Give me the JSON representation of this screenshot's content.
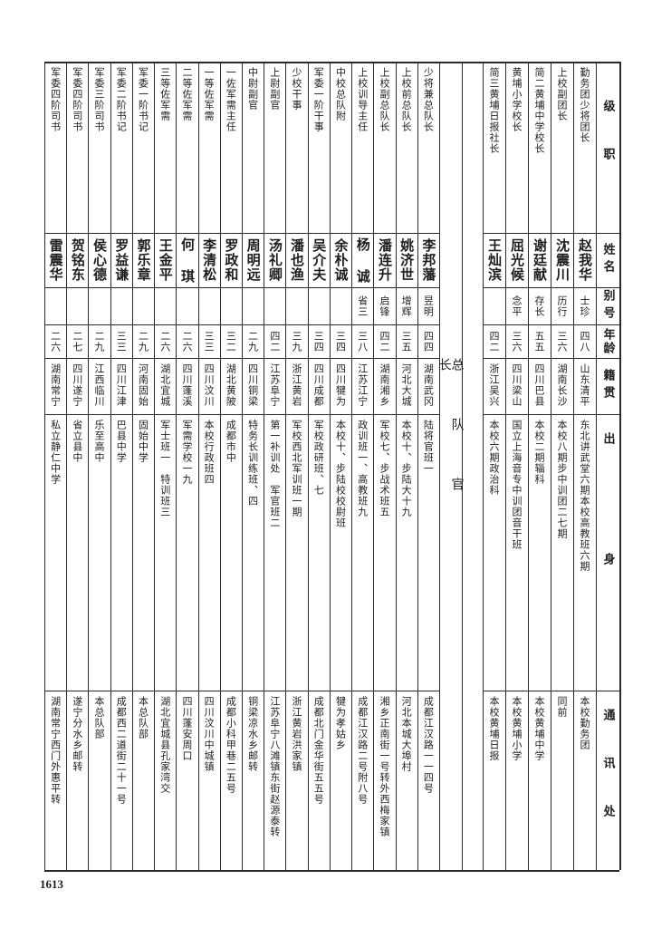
{
  "headers": [
    "级职",
    "姓名",
    "别号",
    "年龄",
    "籍贯",
    "出身",
    "通讯处"
  ],
  "section_label": "总队官长",
  "right_block": [
    {
      "title": "勤务团少将团长",
      "name": "赵我华",
      "alias": "士珍",
      "age": "四八",
      "native": "山东清平",
      "origin": "东北讲武堂六期本校高教班六期",
      "address": "本校勤务团"
    },
    {
      "title": "上校副团长",
      "name": "沈震川",
      "alias": "历行",
      "age": "三六",
      "native": "湖南长沙",
      "origin": "本校八期步中训团二七期",
      "address": "同前"
    },
    {
      "title": "简二黄埔中学校长",
      "name": "谢廷献",
      "alias": "存长",
      "age": "五五",
      "native": "四川巴县",
      "origin": "本校二期辎科",
      "address": "本校黄埔中学"
    },
    {
      "title": "黄埔小学校长",
      "name": "屈光候",
      "alias": "念平",
      "age": "三六",
      "native": "四川梁山",
      "origin": "国立上海音专中训团音干班",
      "address": "本校黄埔小学"
    },
    {
      "title": "简三黄埔日报社长",
      "name": "王灿滨",
      "alias": "",
      "age": "四二",
      "native": "浙江吴兴",
      "origin": "本校六期政治科",
      "address": "本校黄埔日报"
    }
  ],
  "left_block": [
    {
      "title": "少将兼总队长",
      "name": "李邦藩",
      "alias": "昱明",
      "age": "四四",
      "native": "湖南武冈",
      "origin": "陆将官班一",
      "address": "成都江汉路一一四号"
    },
    {
      "title": "上校前总队长",
      "name": "姚济世",
      "alias": "增辉",
      "age": "三五",
      "native": "河北大城",
      "origin": "本校十、步陆大十九",
      "address": "河北本城大埠村"
    },
    {
      "title": "上校副总队长",
      "name": "潘连升",
      "alias": "启锋",
      "age": "四二",
      "native": "湖南湘乡",
      "origin": "军校七、步战术班五",
      "address": "湘乡正南街一号转外西梅家镇"
    },
    {
      "title": "上校训导主任",
      "name": "杨 诚",
      "alias": "省三",
      "age": "三八",
      "native": "江苏江宁",
      "origin": "政训班一、高教班九",
      "address": "成都江汉路二号附八号"
    },
    {
      "title": "中校总队附",
      "name": "余朴诚",
      "alias": "",
      "age": "三四",
      "native": "四川犍为",
      "origin": "本校十、步陆校校尉班",
      "address": "犍为孝姑乡"
    },
    {
      "title": "军委一阶干事",
      "name": "吴介夫",
      "alias": "",
      "age": "三四",
      "native": "四川成都",
      "origin": "军校政研班、七",
      "address": "成都北门金华街五五号"
    },
    {
      "title": "少校干事",
      "name": "潘也渔",
      "alias": "",
      "age": "三九",
      "native": "浙江黄岩",
      "origin": "军校西北军训班一期",
      "address": "浙江黄岩洪家镇"
    },
    {
      "title": "上尉副官",
      "name": "汤礼卿",
      "alias": "",
      "age": "四二",
      "native": "江苏阜宁",
      "origin": "第一补训处　军官班二",
      "address": "江苏阜宁八滩镇东街赵源泰转"
    },
    {
      "title": "中尉副官",
      "name": "周明远",
      "alias": "",
      "age": "二九",
      "native": "四川铜梁",
      "origin": "特务长训练班、四",
      "address": "铜梁凉水乡邮转"
    },
    {
      "title": "一佐军需主任",
      "name": "罗政和",
      "alias": "",
      "age": "三二",
      "native": "湖北黄陂",
      "origin": "成都市中",
      "address": "成都小科甲巷二五号"
    },
    {
      "title": "一等佐军需",
      "name": "李清松",
      "alias": "",
      "age": "三三",
      "native": "四川汶川",
      "origin": "本校行政班四",
      "address": "四川汶川中城镇"
    },
    {
      "title": "二等佐军需",
      "name": "何 琪",
      "alias": "",
      "age": "二六",
      "native": "四川蓬溪",
      "origin": "军需学校一九",
      "address": "四川蓬安周口"
    },
    {
      "title": "三等佐军需",
      "name": "王金平",
      "alias": "",
      "age": "二六",
      "native": "湖北宜城",
      "origin": "军士班一　特训班三",
      "address": "湖北宜城县孔家湾交"
    },
    {
      "title": "军委一阶书记",
      "name": "郭乐章",
      "alias": "",
      "age": "二九",
      "native": "河南固始",
      "origin": "固始中学",
      "address": "本总队部"
    },
    {
      "title": "军委二阶书记",
      "name": "罗益谦",
      "alias": "",
      "age": "三三",
      "native": "四川江津",
      "origin": "巴县中学",
      "address": "成都西二道街二十一号"
    },
    {
      "title": "军委三阶司书",
      "name": "侯心德",
      "alias": "",
      "age": "二九",
      "native": "江西临川",
      "origin": "乐至高中",
      "address": "本总队部"
    },
    {
      "title": "军委四阶司书",
      "name": "贺铭东",
      "alias": "",
      "age": "二七",
      "native": "四川遂宁",
      "origin": "省立县中",
      "address": "遂宁分水乡邮转"
    },
    {
      "title": "军委四阶司书",
      "name": "雷震华",
      "alias": "",
      "age": "二六",
      "native": "湖南常宁",
      "origin": "私立静仁中学",
      "address": "湖南常宁西门外惠平转"
    }
  ],
  "page_number": "1613"
}
